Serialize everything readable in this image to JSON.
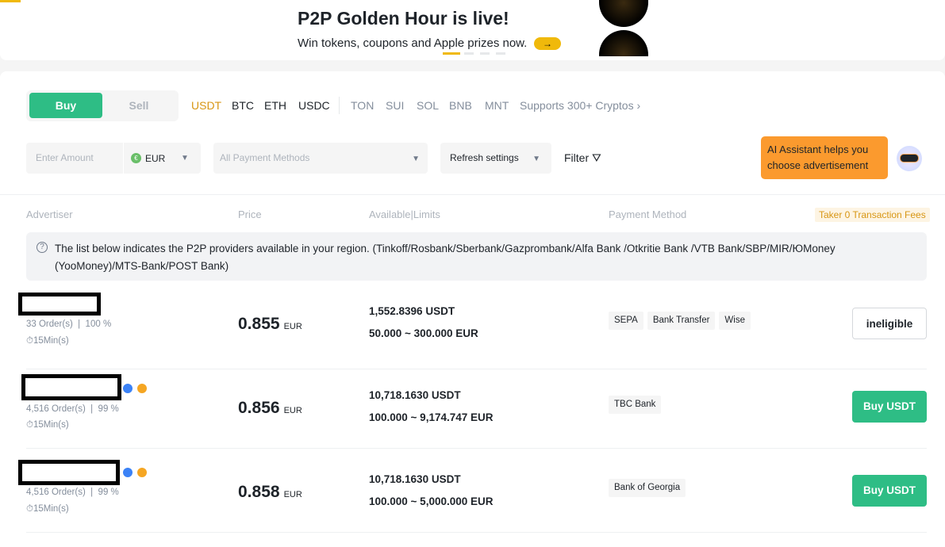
{
  "banner": {
    "title": "P2P Golden Hour is live!",
    "subtitle": "Win tokens, coupons and Apple prizes now.",
    "arrow": "→"
  },
  "trade_tabs": {
    "buy": "Buy",
    "sell": "Sell",
    "active": "Buy"
  },
  "cryptos": {
    "primary": [
      "USDT",
      "BTC",
      "ETH",
      "USDC"
    ],
    "secondary": [
      "TON",
      "SUI",
      "SOL",
      "BNB",
      "MNT"
    ],
    "more": "Supports 300+ Cryptos ›",
    "active": "USDT"
  },
  "filters": {
    "amount_placeholder": "Enter Amount",
    "fiat": "EUR",
    "fiat_icon": "€",
    "payment_placeholder": "All Payment Methods",
    "refresh": "Refresh settings",
    "filter": "Filter"
  },
  "ai": {
    "text": "AI Assistant helps you choose advertisement"
  },
  "headers": {
    "advertiser": "Advertiser",
    "price": "Price",
    "available": "Available|Limits",
    "payment": "Payment Method",
    "fees": "Taker 0 Transaction Fees"
  },
  "notice": "The list below indicates the P2P providers available in your region. (Tinkoff/Rosbank/Sberbank/Gazprombank/Alfa Bank /Otkritie Bank /VTB Bank/SBP/MIR/ЮMoney (YooMoney)/MTS-Bank/POST Bank)",
  "rows": [
    {
      "orders": "33 Order(s)  |  100 %",
      "time": "⏱15Min(s)",
      "price": "0.855",
      "currency": "EUR",
      "available": "1,552.8396 USDT",
      "limits": "50.000 ~ 300.000 EUR",
      "payments": [
        "SEPA",
        "Bank Transfer",
        "Wise"
      ],
      "action": "ineligible"
    },
    {
      "orders": "4,516 Order(s)  |  99 %",
      "time": "⏱15Min(s)",
      "price": "0.856",
      "currency": "EUR",
      "available": "10,718.1630 USDT",
      "limits": "100.000 ~ 9,174.747 EUR",
      "payments": [
        "TBC Bank"
      ],
      "action": "Buy USDT"
    },
    {
      "orders": "4,516 Order(s)  |  99 %",
      "time": "⏱15Min(s)",
      "price": "0.858",
      "currency": "EUR",
      "available": "10,718.1630 USDT",
      "limits": "100.000 ~ 5,000.000 EUR",
      "payments": [
        "Bank of Georgia"
      ],
      "action": "Buy USDT"
    }
  ],
  "colors": {
    "green": "#2ebd85",
    "accent": "#d89614",
    "ai_bubble": "#fb9a2e"
  }
}
